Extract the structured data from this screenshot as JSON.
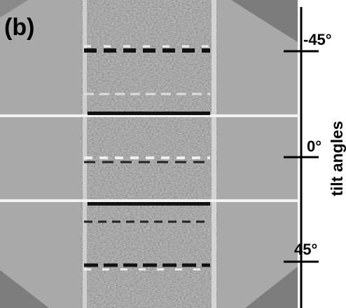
{
  "panel_label": "(b)",
  "axis": {
    "label": "tilt angles",
    "ticks": [
      "-45°",
      "0°",
      "45°"
    ]
  }
}
